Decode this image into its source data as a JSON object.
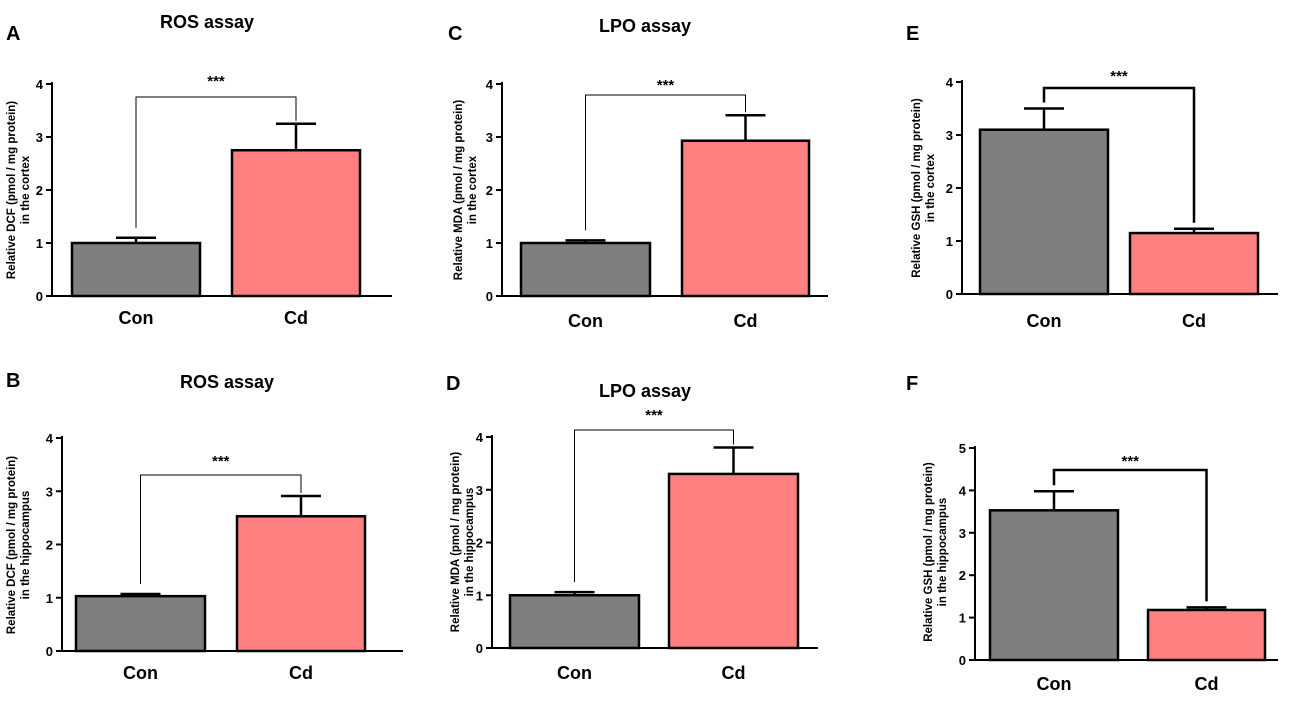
{
  "figure": {
    "colors": {
      "con": "#7f7f7f",
      "cd": "#ff8080",
      "axis": "#000000"
    }
  },
  "chart_data": [
    {
      "panel": "A",
      "type": "bar",
      "title": "ROS assay",
      "ylabel_line1": "Relative DCF (pmol / mg protein)",
      "ylabel_line2": "in the cortex",
      "categories": [
        "Con",
        "Cd"
      ],
      "values": [
        1.0,
        2.75
      ],
      "errors": [
        0.1,
        0.5
      ],
      "ylim": [
        0,
        4
      ],
      "yticks": [
        "0",
        "1",
        "2",
        "3",
        "4"
      ],
      "significance": "***"
    },
    {
      "panel": "B",
      "type": "bar",
      "title": "ROS assay",
      "ylabel_line1": "Relative DCF (pmol / mg protein)",
      "ylabel_line2": "in the hippocampus",
      "categories": [
        "Con",
        "Cd"
      ],
      "values": [
        1.03,
        2.53
      ],
      "errors": [
        0.04,
        0.38
      ],
      "ylim": [
        0,
        4
      ],
      "yticks": [
        "0",
        "1",
        "2",
        "3",
        "4"
      ],
      "significance": "***"
    },
    {
      "panel": "C",
      "type": "bar",
      "title": "LPO assay",
      "ylabel_line1": "Relative MDA (pmol / mg protein)",
      "ylabel_line2": "in the cortex",
      "categories": [
        "Con",
        "Cd"
      ],
      "values": [
        1.0,
        2.93
      ],
      "errors": [
        0.05,
        0.48
      ],
      "ylim": [
        0,
        4
      ],
      "yticks": [
        "0",
        "1",
        "2",
        "3",
        "4"
      ],
      "significance": "***"
    },
    {
      "panel": "D",
      "type": "bar",
      "title": "LPO assay",
      "ylabel_line1": "Relative MDA (pmol / mg protein)",
      "ylabel_line2": "in the hippocampus",
      "categories": [
        "Con",
        "Cd"
      ],
      "values": [
        1.0,
        3.3
      ],
      "errors": [
        0.06,
        0.5
      ],
      "ylim": [
        0,
        4
      ],
      "yticks": [
        "0",
        "1",
        "2",
        "3",
        "4"
      ],
      "significance": "***"
    },
    {
      "panel": "E",
      "type": "bar",
      "title": "",
      "ylabel_line1": "Relative GSH (pmol / mg protein)",
      "ylabel_line2": "in the cortex",
      "categories": [
        "Con",
        "Cd"
      ],
      "values": [
        3.1,
        1.15
      ],
      "errors": [
        0.4,
        0.08
      ],
      "ylim": [
        0,
        4
      ],
      "yticks": [
        "0",
        "1",
        "2",
        "3",
        "4"
      ],
      "significance": "***"
    },
    {
      "panel": "F",
      "type": "bar",
      "title": "",
      "ylabel_line1": "Relative GSH (pmol / mg protein)",
      "ylabel_line2": "in the hippocampus",
      "categories": [
        "Con",
        "Cd"
      ],
      "values": [
        3.53,
        1.18
      ],
      "errors": [
        0.45,
        0.06
      ],
      "ylim": [
        0,
        5
      ],
      "yticks": [
        "0",
        "1",
        "2",
        "3",
        "4",
        "5"
      ],
      "significance": "***"
    }
  ]
}
